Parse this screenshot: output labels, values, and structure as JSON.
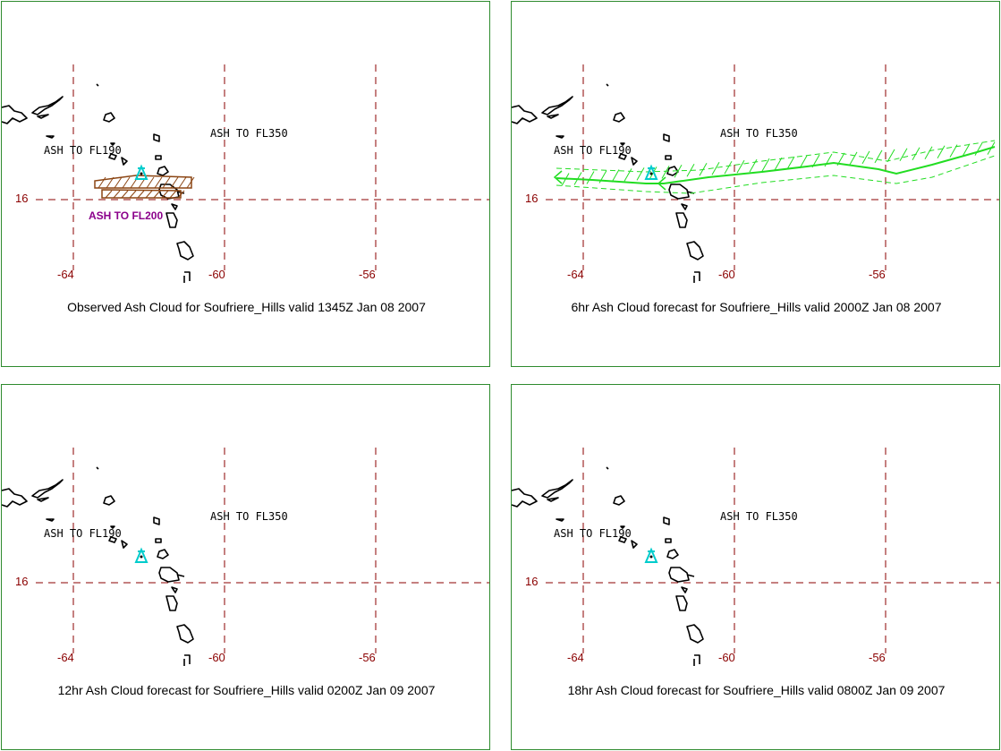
{
  "panels": [
    {
      "caption": "Observed Ash Cloud for Soufriere_Hills valid 1345Z Jan 08 2007",
      "labels": [
        "ASH TO FL190",
        "ASH TO FL350",
        "ASH TO FL200"
      ],
      "plume": "observed",
      "plume_color": "#8b4513"
    },
    {
      "caption": "6hr Ash Cloud forecast for Soufriere_Hills valid 2000Z Jan 08 2007",
      "labels": [
        "ASH TO FL190",
        "ASH TO FL350"
      ],
      "plume": "forecast",
      "plume_color": "#22dd22"
    },
    {
      "caption": "12hr Ash Cloud forecast for Soufriere_Hills valid 0200Z Jan 09 2007",
      "labels": [
        "ASH TO FL190",
        "ASH TO FL350"
      ],
      "plume": "none"
    },
    {
      "caption": "18hr Ash Cloud forecast for Soufriere_Hills valid 0800Z Jan 09 2007",
      "labels": [
        "ASH TO FL190",
        "ASH TO FL350"
      ],
      "plume": "none"
    }
  ],
  "grid": {
    "lon_labels": [
      "-64",
      "-60",
      "-56"
    ],
    "lat_labels": [
      "16"
    ],
    "grid_color": "#8b0000",
    "coast_color": "#000000"
  },
  "icons": {
    "volcano": "volcano-icon",
    "volcano_color": "#00cccc"
  }
}
